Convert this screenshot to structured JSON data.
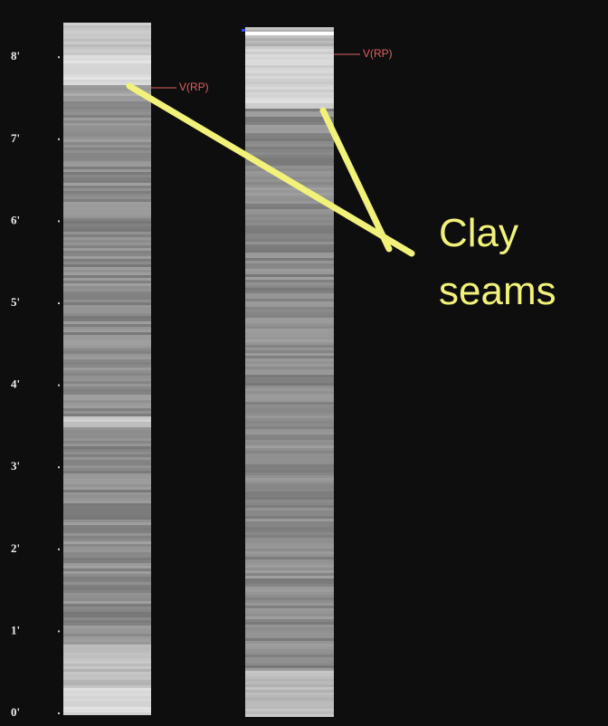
{
  "axis": {
    "ticks": [
      "0'",
      "1'",
      "2'",
      "3'",
      "4'",
      "5'",
      "6'",
      "7'",
      "8'"
    ]
  },
  "markers": [
    {
      "label": "V(RP)"
    },
    {
      "label": "V(RP)"
    }
  ],
  "annotation": {
    "lines": [
      "Clay",
      "seams"
    ]
  }
}
